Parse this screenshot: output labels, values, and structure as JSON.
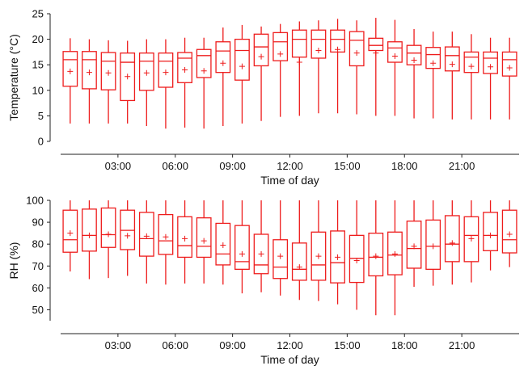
{
  "chart_data": [
    {
      "type": "box",
      "xlabel": "Time of day",
      "ylabel": "Temperature (°C)",
      "ylim": [
        0,
        25
      ],
      "yticks": [
        "0",
        "5",
        "10",
        "15",
        "20",
        "25"
      ],
      "xlim": [
        0,
        24
      ],
      "xticks": [
        {
          "x": 3,
          "label": "03:00"
        },
        {
          "x": 6,
          "label": "06:00"
        },
        {
          "x": 9,
          "label": "09:00"
        },
        {
          "x": 12,
          "label": "12:00"
        },
        {
          "x": 15,
          "label": "15:00"
        },
        {
          "x": 18,
          "label": "18:00"
        },
        {
          "x": 21,
          "label": "21:00"
        }
      ],
      "color": "#ee1c1c",
      "boxes": [
        {
          "hour": 0.5,
          "min": 3.5,
          "q1": 10.8,
          "median": 16.0,
          "q3": 17.6,
          "max": 20.2,
          "mean": 13.7
        },
        {
          "hour": 1.5,
          "min": 3.5,
          "q1": 10.3,
          "median": 16.0,
          "q3": 17.6,
          "max": 20.0,
          "mean": 13.5
        },
        {
          "hour": 2.5,
          "min": 3.5,
          "q1": 10.1,
          "median": 15.7,
          "q3": 17.4,
          "max": 19.8,
          "mean": 13.4
        },
        {
          "hour": 3.5,
          "min": 3.5,
          "q1": 8.0,
          "median": 15.5,
          "q3": 17.3,
          "max": 19.7,
          "mean": 12.7
        },
        {
          "hour": 4.5,
          "min": 3.0,
          "q1": 10.0,
          "median": 15.7,
          "q3": 17.3,
          "max": 20.0,
          "mean": 13.4
        },
        {
          "hour": 5.5,
          "min": 2.5,
          "q1": 10.6,
          "median": 15.7,
          "q3": 17.3,
          "max": 20.0,
          "mean": 13.5
        },
        {
          "hour": 6.5,
          "min": 2.7,
          "q1": 11.5,
          "median": 16.3,
          "q3": 17.4,
          "max": 20.3,
          "mean": 14.0
        },
        {
          "hour": 7.5,
          "min": 2.5,
          "q1": 12.5,
          "median": 16.8,
          "q3": 18.0,
          "max": 20.3,
          "mean": 13.8
        },
        {
          "hour": 8.5,
          "min": 3.0,
          "q1": 13.5,
          "median": 17.7,
          "q3": 19.5,
          "max": 22.3,
          "mean": 15.3
        },
        {
          "hour": 9.5,
          "min": 3.5,
          "q1": 12.0,
          "median": 17.8,
          "q3": 20.0,
          "max": 22.8,
          "mean": 14.7
        },
        {
          "hour": 10.5,
          "min": 4.0,
          "q1": 14.8,
          "median": 18.5,
          "q3": 21.0,
          "max": 22.5,
          "mean": 16.6
        },
        {
          "hour": 11.5,
          "min": 4.8,
          "q1": 15.8,
          "median": 19.5,
          "q3": 21.3,
          "max": 23.0,
          "mean": 17.1
        },
        {
          "hour": 12.5,
          "min": 5.0,
          "q1": 16.5,
          "median": 20.0,
          "q3": 21.8,
          "max": 23.5,
          "mean": 15.5
        },
        {
          "hour": 13.5,
          "min": 5.5,
          "q1": 16.3,
          "median": 20.0,
          "q3": 21.8,
          "max": 23.7,
          "mean": 17.8
        },
        {
          "hour": 14.5,
          "min": 5.5,
          "q1": 17.5,
          "median": 20.0,
          "q3": 21.8,
          "max": 24.0,
          "mean": 18.0
        },
        {
          "hour": 15.5,
          "min": 5.3,
          "q1": 14.8,
          "median": 19.8,
          "q3": 21.5,
          "max": 23.7,
          "mean": 17.3
        },
        {
          "hour": 16.5,
          "min": 5.0,
          "q1": 17.8,
          "median": 18.8,
          "q3": 20.2,
          "max": 24.2,
          "mean": 17.3
        },
        {
          "hour": 17.5,
          "min": 5.0,
          "q1": 15.5,
          "median": 18.3,
          "q3": 19.5,
          "max": 23.8,
          "mean": 16.7
        },
        {
          "hour": 18.5,
          "min": 4.5,
          "q1": 15.0,
          "median": 17.3,
          "q3": 18.8,
          "max": 22.0,
          "mean": 15.9
        },
        {
          "hour": 19.5,
          "min": 4.5,
          "q1": 14.3,
          "median": 17.0,
          "q3": 18.4,
          "max": 21.5,
          "mean": 15.3
        },
        {
          "hour": 20.5,
          "min": 4.3,
          "q1": 13.8,
          "median": 16.8,
          "q3": 18.5,
          "max": 21.5,
          "mean": 15.1
        },
        {
          "hour": 21.5,
          "min": 4.3,
          "q1": 13.5,
          "median": 16.5,
          "q3": 17.5,
          "max": 21.0,
          "mean": 14.7
        },
        {
          "hour": 22.5,
          "min": 4.3,
          "q1": 13.3,
          "median": 16.3,
          "q3": 17.5,
          "max": 20.3,
          "mean": 14.6
        },
        {
          "hour": 23.5,
          "min": 4.3,
          "q1": 12.8,
          "median": 16.0,
          "q3": 17.5,
          "max": 20.3,
          "mean": 14.4
        }
      ]
    },
    {
      "type": "box",
      "xlabel": "Time of day",
      "ylabel": "RH (%)",
      "ylim": [
        45,
        100
      ],
      "yticks": [
        "50",
        "60",
        "70",
        "80",
        "90",
        "100"
      ],
      "xlim": [
        0,
        24
      ],
      "xticks": [
        {
          "x": 3,
          "label": "03:00"
        },
        {
          "x": 6,
          "label": "06:00"
        },
        {
          "x": 9,
          "label": "09:00"
        },
        {
          "x": 12,
          "label": "12:00"
        },
        {
          "x": 15,
          "label": "15:00"
        },
        {
          "x": 18,
          "label": "18:00"
        },
        {
          "x": 21,
          "label": "21:00"
        }
      ],
      "color": "#ee1c1c",
      "boxes": [
        {
          "hour": 0.5,
          "min": 67.5,
          "q1": 76.3,
          "median": 82.0,
          "q3": 95.5,
          "max": 100.0,
          "mean": 85.0
        },
        {
          "hour": 1.5,
          "min": 64.0,
          "q1": 76.8,
          "median": 84.0,
          "q3": 96.0,
          "max": 100.0,
          "mean": 84.0
        },
        {
          "hour": 2.5,
          "min": 64.5,
          "q1": 78.5,
          "median": 84.3,
          "q3": 96.5,
          "max": 100.0,
          "mean": 84.5
        },
        {
          "hour": 3.5,
          "min": 65.5,
          "q1": 77.5,
          "median": 86.3,
          "q3": 95.5,
          "max": 100.0,
          "mean": 83.8
        },
        {
          "hour": 4.5,
          "min": 62.0,
          "q1": 74.5,
          "median": 82.5,
          "q3": 94.5,
          "max": 100.0,
          "mean": 83.6
        },
        {
          "hour": 5.5,
          "min": 61.5,
          "q1": 75.3,
          "median": 81.5,
          "q3": 93.5,
          "max": 100.0,
          "mean": 83.3
        },
        {
          "hour": 6.5,
          "min": 62.0,
          "q1": 74.0,
          "median": 79.3,
          "q3": 92.5,
          "max": 100.0,
          "mean": 82.5
        },
        {
          "hour": 7.5,
          "min": 62.0,
          "q1": 74.0,
          "median": 79.0,
          "q3": 92.0,
          "max": 100.0,
          "mean": 81.5
        },
        {
          "hour": 8.5,
          "min": 61.5,
          "q1": 70.5,
          "median": 75.5,
          "q3": 89.5,
          "max": 100.0,
          "mean": 79.5
        },
        {
          "hour": 9.5,
          "min": 57.5,
          "q1": 68.5,
          "median": 72.0,
          "q3": 88.5,
          "max": 100.0,
          "mean": 75.5
        },
        {
          "hour": 10.5,
          "min": 58.0,
          "q1": 66.5,
          "median": 70.5,
          "q3": 84.5,
          "max": 100.0,
          "mean": 75.5
        },
        {
          "hour": 11.5,
          "min": 56.5,
          "q1": 64.3,
          "median": 69.5,
          "q3": 82.0,
          "max": 100.0,
          "mean": 74.5
        },
        {
          "hour": 12.5,
          "min": 54.5,
          "q1": 63.5,
          "median": 68.5,
          "q3": 80.5,
          "max": 100.0,
          "mean": 69.5
        },
        {
          "hour": 13.5,
          "min": 54.0,
          "q1": 63.5,
          "median": 70.5,
          "q3": 85.5,
          "max": 100.0,
          "mean": 74.5
        },
        {
          "hour": 14.5,
          "min": 52.5,
          "q1": 62.3,
          "median": 71.5,
          "q3": 86.0,
          "max": 100.0,
          "mean": 74.0
        },
        {
          "hour": 15.5,
          "min": 50.0,
          "q1": 62.5,
          "median": 73.5,
          "q3": 84.0,
          "max": 100.0,
          "mean": 72.5
        },
        {
          "hour": 16.5,
          "min": 47.5,
          "q1": 65.5,
          "median": 74.0,
          "q3": 85.0,
          "max": 100.0,
          "mean": 74.5
        },
        {
          "hour": 17.5,
          "min": 47.5,
          "q1": 66.0,
          "median": 75.0,
          "q3": 85.5,
          "max": 100.0,
          "mean": 75.5
        },
        {
          "hour": 18.5,
          "min": 60.5,
          "q1": 69.0,
          "median": 78.0,
          "q3": 90.5,
          "max": 100.0,
          "mean": 79.0
        },
        {
          "hour": 19.5,
          "min": 61.0,
          "q1": 68.5,
          "median": 79.0,
          "q3": 91.0,
          "max": 100.0,
          "mean": 79.0
        },
        {
          "hour": 20.5,
          "min": 61.5,
          "q1": 72.0,
          "median": 80.0,
          "q3": 93.0,
          "max": 100.0,
          "mean": 80.5
        },
        {
          "hour": 21.5,
          "min": 62.5,
          "q1": 72.0,
          "median": 84.0,
          "q3": 92.5,
          "max": 100.0,
          "mean": 82.5
        },
        {
          "hour": 22.5,
          "min": 68.0,
          "q1": 77.0,
          "median": 84.0,
          "q3": 94.5,
          "max": 100.0,
          "mean": 84.0
        },
        {
          "hour": 23.5,
          "min": 69.5,
          "q1": 76.0,
          "median": 82.0,
          "q3": 95.5,
          "max": 100.0,
          "mean": 84.5
        }
      ]
    }
  ]
}
